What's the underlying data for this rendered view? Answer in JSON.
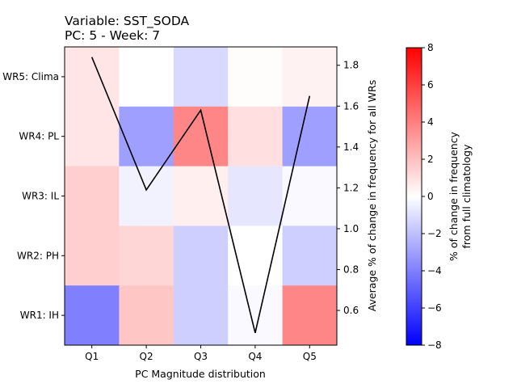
{
  "chart_data": {
    "type": "heatmap",
    "title_line1": "Variable: SST_SODA",
    "title_line2": "PC: 5 - Week: 7",
    "x_categories": [
      "Q1",
      "Q2",
      "Q3",
      "Q4",
      "Q5"
    ],
    "y_categories_top_to_bottom": [
      "WR5: Clima",
      "WR4: PL",
      "WR3: IL",
      "WR2: PH",
      "WR1: IH"
    ],
    "xlabel": "PC Magnitude distribution",
    "ylabel_right": "Average % of change in frequency for all WRs",
    "heatmap_values": [
      [
        0.8,
        0.0,
        -1.2,
        0.1,
        0.4
      ],
      [
        0.8,
        -3.0,
        3.8,
        1.0,
        -3.0
      ],
      [
        1.5,
        -0.4,
        0.5,
        -0.8,
        -0.2
      ],
      [
        1.5,
        1.3,
        -1.5,
        0.0,
        -1.5
      ],
      [
        -4.0,
        1.8,
        -1.5,
        -0.2,
        3.8
      ]
    ],
    "color_scale": {
      "min": -8,
      "max": 8,
      "low_color": "#0000ff",
      "mid_color": "#ffffff",
      "high_color": "#ff0000"
    },
    "colorbar_label_line1": "% of change in frequency",
    "colorbar_label_line2": "from full climatology",
    "colorbar_ticks": [
      -8,
      -6,
      -4,
      -2,
      0,
      2,
      4,
      6,
      8
    ],
    "line_series": {
      "x": [
        "Q1",
        "Q2",
        "Q3",
        "Q4",
        "Q5"
      ],
      "values": [
        1.84,
        1.19,
        1.58,
        0.49,
        1.65
      ],
      "color": "#000000"
    },
    "right_axis": {
      "ylim": [
        0.43,
        1.89
      ],
      "ticks": [
        0.6,
        0.8,
        1.0,
        1.2,
        1.4,
        1.6,
        1.8
      ]
    }
  }
}
